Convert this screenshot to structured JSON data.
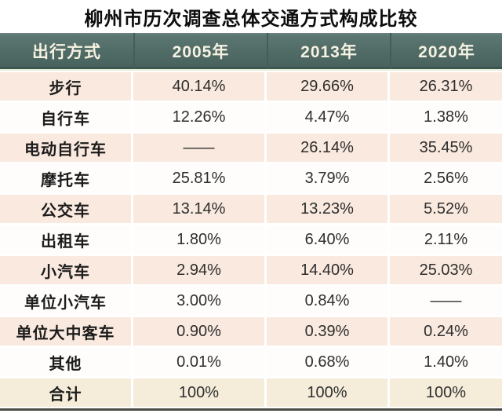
{
  "title": "柳州市历次调查总体交通方式构成比较",
  "chart_data": {
    "type": "table",
    "title": "柳州市历次调查总体交通方式构成比较",
    "columns": [
      "出行方式",
      "2005年",
      "2013年",
      "2020年"
    ],
    "rows": [
      {
        "label": "步行",
        "values": [
          "40.14%",
          "29.66%",
          "26.31%"
        ]
      },
      {
        "label": "自行车",
        "values": [
          "12.26%",
          "4.47%",
          "1.38%"
        ]
      },
      {
        "label": "电动自行车",
        "values": [
          "——",
          "26.14%",
          "35.45%"
        ]
      },
      {
        "label": "摩托车",
        "values": [
          "25.81%",
          "3.79%",
          "2.56%"
        ]
      },
      {
        "label": "公交车",
        "values": [
          "13.14%",
          "13.23%",
          "5.52%"
        ]
      },
      {
        "label": "出租车",
        "values": [
          "1.80%",
          "6.40%",
          "2.11%"
        ]
      },
      {
        "label": "小汽车",
        "values": [
          "2.94%",
          "14.40%",
          "25.03%"
        ]
      },
      {
        "label": "单位小汽车",
        "values": [
          "3.00%",
          "0.84%",
          "——"
        ]
      },
      {
        "label": "单位大中客车",
        "values": [
          "0.90%",
          "0.39%",
          "0.24%"
        ]
      },
      {
        "label": "其他",
        "values": [
          "0.01%",
          "0.68%",
          "1.40%"
        ]
      },
      {
        "label": "合计",
        "values": [
          "100%",
          "100%",
          "100%"
        ],
        "is_total": true
      }
    ]
  },
  "colors": {
    "header_bg": "#506a66",
    "header_text": "#f6f2e2",
    "row_odd_bg": "#f9e9de",
    "row_even_bg": "#fefdfb",
    "total_row_bg": "#f5edda",
    "bottom_rule": "#4a4a44",
    "title_text": "#0d0d0d",
    "value_text": "#2e2e2e"
  }
}
